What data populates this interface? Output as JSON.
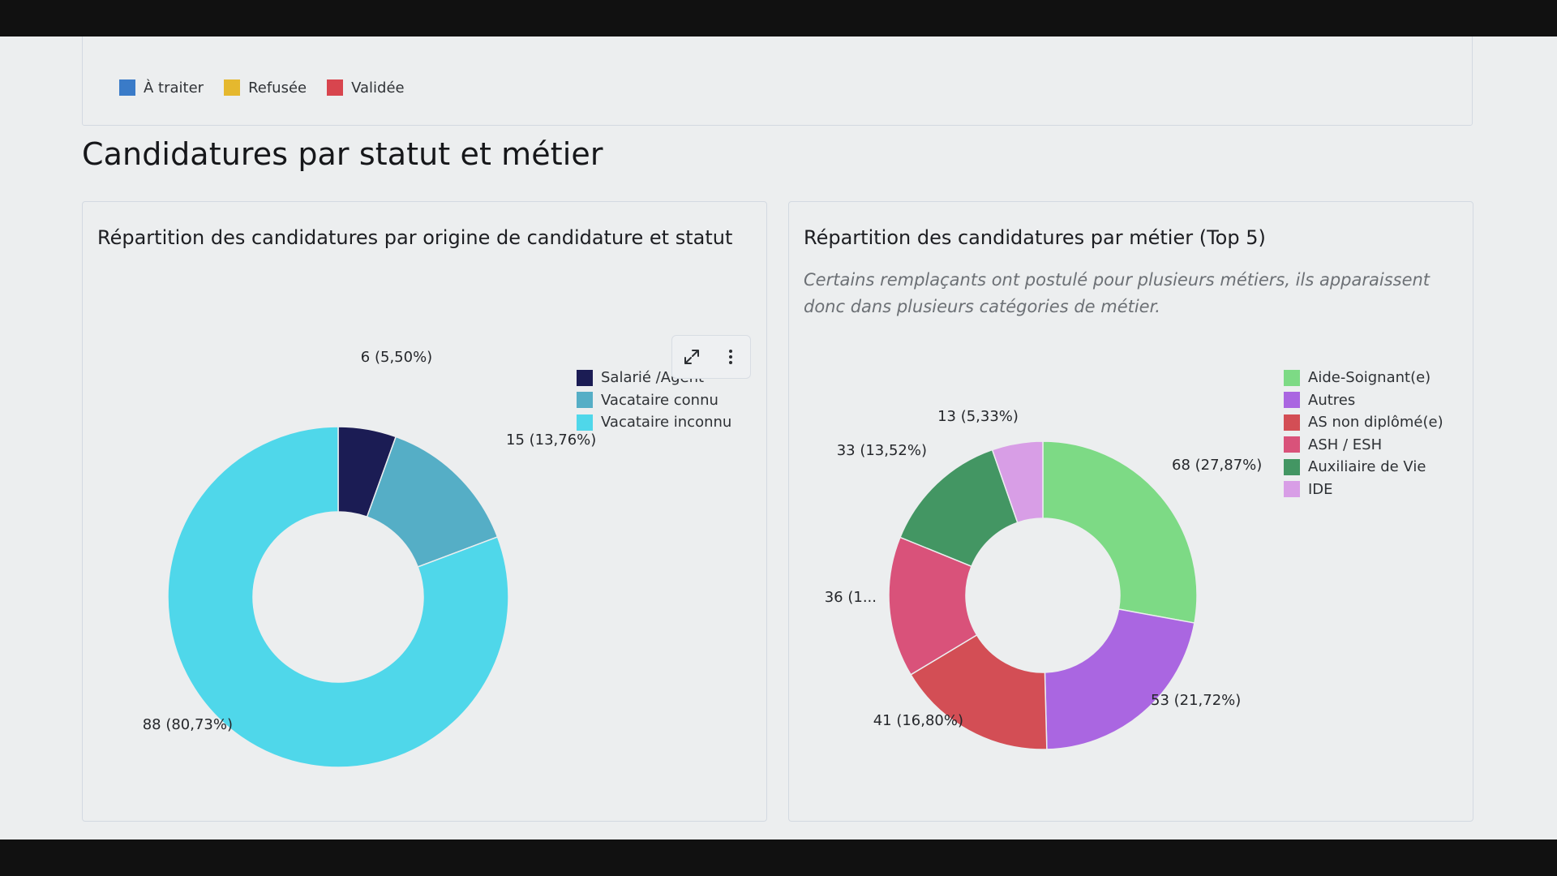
{
  "top_legend": [
    {
      "label": "À traiter",
      "color": "#3a7bc8"
    },
    {
      "label": "Refusée",
      "color": "#e5b82e"
    },
    {
      "label": "Validée",
      "color": "#d8454e"
    }
  ],
  "section_title": "Candidatures par statut et métier",
  "toolbar": {
    "expand_icon": "expand-icon",
    "more_icon": "more-vertical-icon"
  },
  "chart_data": [
    {
      "type": "pie",
      "donut": true,
      "title": "Répartition des candidatures par origine de candidature et statut",
      "categories": [
        "Salarié /Agent",
        "Vacataire connu",
        "Vacataire inconnu"
      ],
      "values": [
        6,
        15,
        88
      ],
      "labels": [
        "6 (5,50%)",
        "15 (13,76%)",
        "88 (80,73%)"
      ],
      "colors": [
        "#1b1c54",
        "#55aec6",
        "#4fd7ea"
      ],
      "legend": "right"
    },
    {
      "type": "pie",
      "donut": true,
      "title": "Répartition des candidatures par métier (Top 5)",
      "note": "Certains remplaçants ont postulé pour plusieurs métiers, ils apparaissent donc dans plusieurs catégories de métier.",
      "categories": [
        "Aide-Soignant(e)",
        "Autres",
        "AS non diplômé(e)",
        "ASH / ESH",
        "Auxiliaire de Vie",
        "IDE"
      ],
      "values": [
        68,
        53,
        41,
        36,
        33,
        13
      ],
      "labels": [
        "68 (27,87%)",
        "53 (21,72%)",
        "41 (16,80%)",
        "36 (1...",
        "33 (13,52%)",
        "13 (5,33%)"
      ],
      "colors": [
        "#7dda85",
        "#aa66e1",
        "#d34e55",
        "#d9527a",
        "#439663",
        "#d89ee6"
      ],
      "legend": "right"
    }
  ]
}
